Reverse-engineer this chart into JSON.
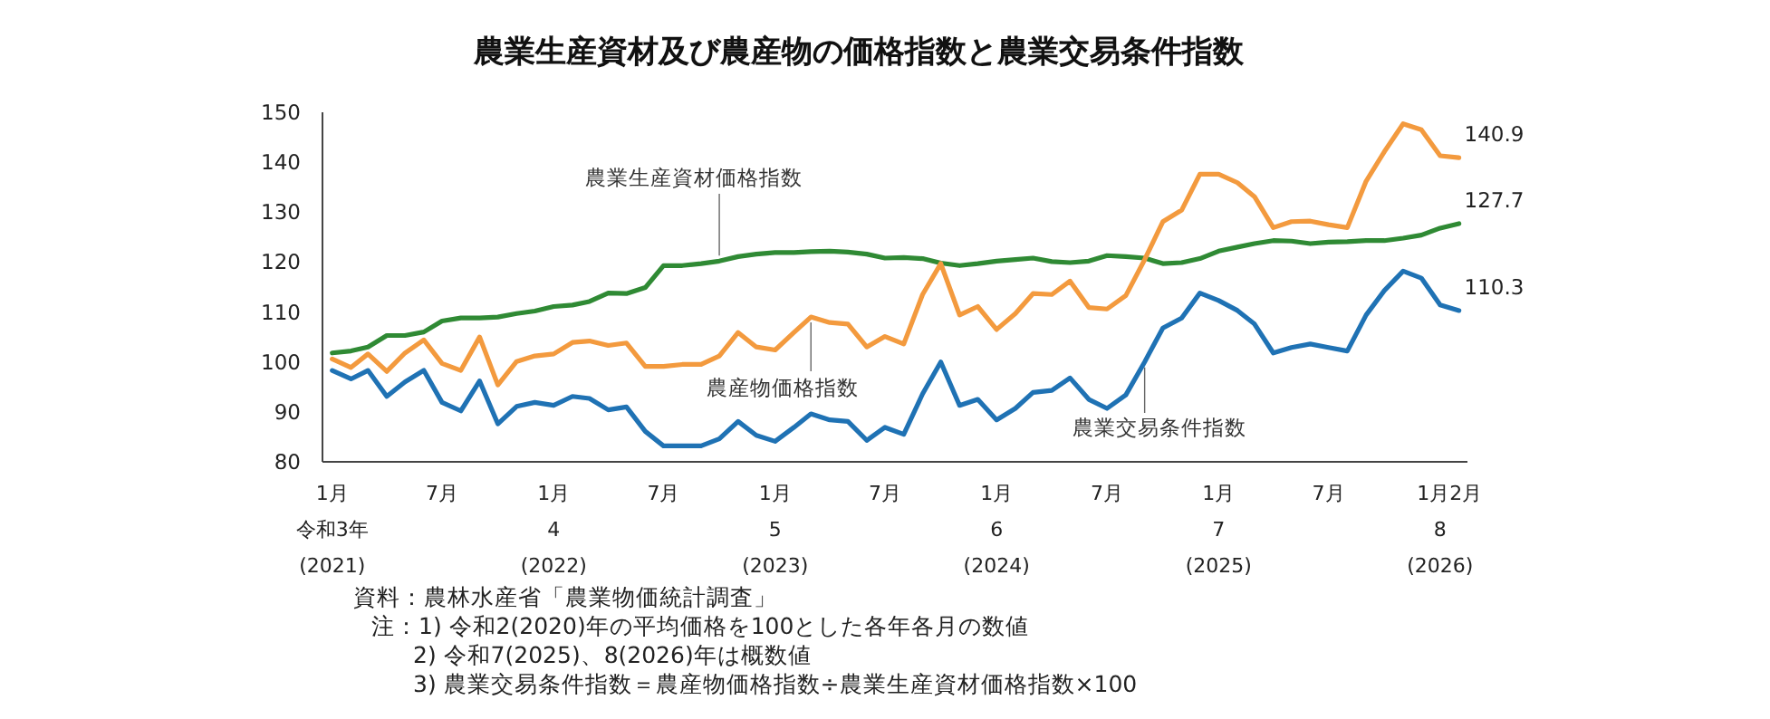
{
  "chart_data": {
    "type": "line",
    "title": "農業生産資材及び農産物の価格指数と農業交易条件指数",
    "x": [
      "2021-01",
      "2021-02",
      "2021-03",
      "2021-04",
      "2021-05",
      "2021-06",
      "2021-07",
      "2021-08",
      "2021-09",
      "2021-10",
      "2021-11",
      "2021-12",
      "2022-01",
      "2022-02",
      "2022-03",
      "2022-04",
      "2022-05",
      "2022-06",
      "2022-07",
      "2022-08",
      "2022-09",
      "2022-10",
      "2022-11",
      "2022-12",
      "2023-01",
      "2023-02",
      "2023-03",
      "2023-04",
      "2023-05",
      "2023-06",
      "2023-07",
      "2023-08",
      "2023-09",
      "2023-10",
      "2023-11",
      "2023-12",
      "2024-01",
      "2024-02",
      "2024-03",
      "2024-04",
      "2024-05",
      "2024-06",
      "2024-07",
      "2024-08",
      "2024-09",
      "2024-10",
      "2024-11",
      "2024-12",
      "2025-01",
      "2025-02",
      "2025-03",
      "2025-04",
      "2025-05",
      "2025-06",
      "2025-07",
      "2025-08",
      "2025-09",
      "2025-10",
      "2025-11",
      "2025-12",
      "2026-01",
      "2026-02"
    ],
    "xlim": [
      "2020-12-16",
      "2026-02-15"
    ],
    "xticks": [
      {
        "value": "2021-01",
        "label": "1月"
      },
      {
        "value": "2021-07",
        "label": "7月"
      },
      {
        "value": "2022-01",
        "label": "1月"
      },
      {
        "value": "2022-07",
        "label": "7月"
      },
      {
        "value": "2023-01",
        "label": "1月"
      },
      {
        "value": "2023-07",
        "label": "7月"
      },
      {
        "value": "2024-01",
        "label": "1月"
      },
      {
        "value": "2024-07",
        "label": "7月"
      },
      {
        "value": "2025-01",
        "label": "1月"
      },
      {
        "value": "2025-07",
        "label": "7月"
      },
      {
        "value": "2026-01",
        "label": "1月"
      },
      {
        "value": "2026-02",
        "label": "2月"
      }
    ],
    "series": [
      {
        "name": "農業生産資材価格指数",
        "color": "#2f8a34",
        "values": [
          101.8,
          102.2,
          103,
          105.3,
          105.3,
          106,
          108.2,
          108.8,
          108.8,
          109,
          109.7,
          110.2,
          111.1,
          111.4,
          112.1,
          113.8,
          113.7,
          114.9,
          119.3,
          119.3,
          119.7,
          120.2,
          121.1,
          121.6,
          121.9,
          121.9,
          122.1,
          122.2,
          122,
          121.6,
          120.8,
          120.9,
          120.7,
          119.8,
          119.3,
          119.7,
          120.2,
          120.5,
          120.8,
          120.1,
          119.9,
          120.2,
          121.3,
          121.1,
          120.8,
          119.7,
          119.9,
          120.7,
          122.2,
          123,
          123.7,
          124.3,
          124.2,
          123.7,
          124,
          124.1,
          124.3,
          124.3,
          124.8,
          125.4,
          126.8,
          127.7
        ],
        "value_labels": [
          null,
          null,
          null,
          null,
          null,
          null,
          null,
          null,
          null,
          null,
          null,
          null,
          null,
          null,
          null,
          null,
          null,
          null,
          null,
          null,
          null,
          null,
          null,
          null,
          null,
          null,
          null,
          null,
          null,
          null,
          null,
          null,
          null,
          null,
          null,
          null,
          null,
          null,
          null,
          null,
          null,
          null,
          null,
          null,
          null,
          null,
          null,
          null,
          null,
          null,
          null,
          null,
          null,
          null,
          null,
          null,
          null,
          null,
          null,
          null,
          null,
          "127.7"
        ]
      },
      {
        "name": "農産物価格指数",
        "color": "#f39a3e",
        "values": [
          100.6,
          98.9,
          101.6,
          98.1,
          101.8,
          104.4,
          99.7,
          98.3,
          105,
          95.4,
          100.1,
          101.2,
          101.6,
          103.9,
          104.2,
          103.3,
          103.8,
          99.1,
          99.1,
          99.5,
          99.5,
          101.2,
          105.9,
          103,
          102.4,
          105.9,
          109,
          107.9,
          107.6,
          103,
          105.1,
          103.6,
          113.5,
          119.7,
          109.4,
          111.1,
          106.5,
          109.7,
          113.7,
          113.5,
          116.2,
          110.9,
          110.6,
          113.3,
          120.5,
          128.1,
          130.4,
          137.6,
          137.6,
          135.9,
          133.1,
          126.9,
          128.1,
          128.2,
          127.5,
          126.9,
          136.2,
          142.1,
          147.7,
          146.5,
          141.3,
          140.9
        ],
        "value_labels": [
          null,
          null,
          null,
          null,
          null,
          null,
          null,
          null,
          null,
          null,
          null,
          null,
          null,
          null,
          null,
          null,
          null,
          null,
          null,
          null,
          null,
          null,
          null,
          null,
          null,
          null,
          null,
          null,
          null,
          null,
          null,
          null,
          null,
          null,
          null,
          null,
          null,
          null,
          null,
          null,
          null,
          null,
          null,
          null,
          null,
          null,
          null,
          null,
          null,
          null,
          null,
          null,
          null,
          null,
          null,
          null,
          null,
          null,
          null,
          null,
          null,
          "140.9"
        ]
      },
      {
        "name": "農業交易条件指数",
        "color": "#1f72b4",
        "values": [
          98.3,
          96.6,
          98.3,
          93.1,
          96,
          98.3,
          91.9,
          90.2,
          96.2,
          87.6,
          91.1,
          91.9,
          91.3,
          93.1,
          92.7,
          90.4,
          91,
          86.1,
          83.2,
          83.2,
          83.2,
          84.6,
          88.1,
          85.3,
          84.1,
          86.9,
          89.6,
          88.4,
          88.1,
          84.3,
          86.9,
          85.5,
          93.6,
          100,
          91.3,
          92.5,
          88.4,
          90.7,
          93.9,
          94.3,
          96.8,
          92.5,
          90.7,
          93.4,
          100,
          106.8,
          108.8,
          113.8,
          112.3,
          110.3,
          107.6,
          101.8,
          102.9,
          103.6,
          102.9,
          102.2,
          109.4,
          114.3,
          118.2,
          116.8,
          111.4,
          110.3
        ],
        "value_labels": [
          null,
          null,
          null,
          null,
          null,
          null,
          null,
          null,
          null,
          null,
          null,
          null,
          null,
          null,
          null,
          null,
          null,
          null,
          null,
          null,
          null,
          null,
          null,
          null,
          null,
          null,
          null,
          null,
          null,
          null,
          null,
          null,
          null,
          null,
          null,
          null,
          null,
          null,
          null,
          null,
          null,
          null,
          null,
          null,
          null,
          null,
          null,
          null,
          null,
          null,
          null,
          null,
          null,
          null,
          null,
          null,
          null,
          null,
          null,
          null,
          null,
          "110.3"
        ]
      }
    ],
    "ylim": [
      80,
      150
    ],
    "yticks": [
      80,
      90,
      100,
      110,
      120,
      130,
      140,
      150
    ],
    "grid": false,
    "legend": false,
    "annotations": [
      "令和3年",
      "(2021)",
      "4",
      "(2022)",
      "5",
      "(2023)",
      "6",
      "(2024)",
      "7",
      "(2025)",
      "8",
      "(2026)",
      "資料：農林水産省「農業物価統計調査」",
      "注：1) 令和2(2020)年の平均価格を100とした各年各月の数値",
      "2) 令和7(2025)、8(2026)年は概数値",
      "3) 農業交易条件指数＝農産物価格指数÷農業生産資材価格指数×100"
    ]
  }
}
